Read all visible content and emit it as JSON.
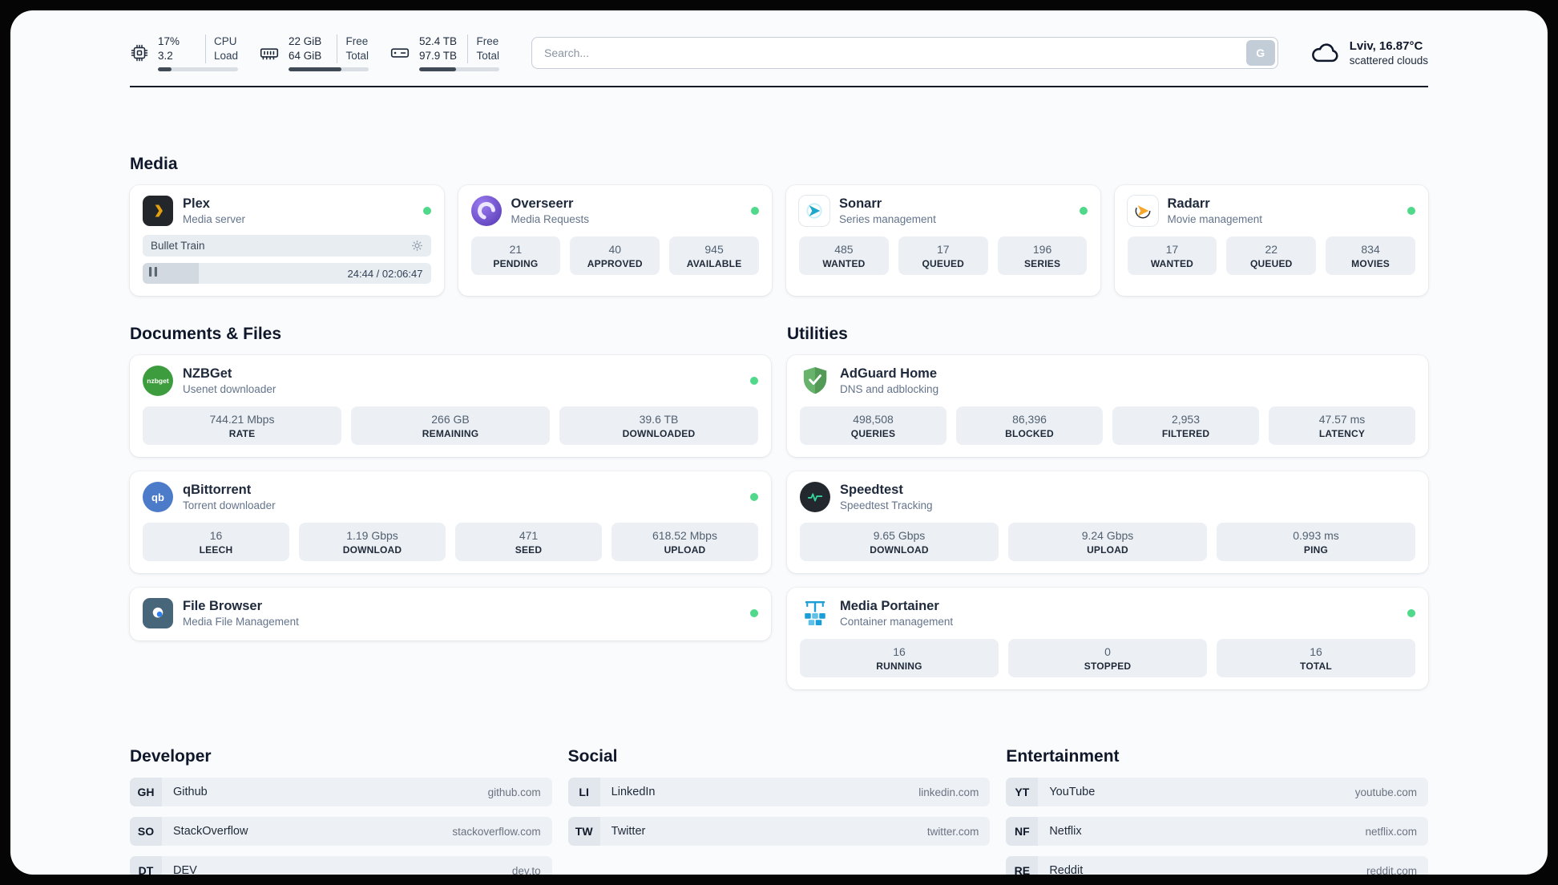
{
  "topbar": {
    "cpu": {
      "value_top": "17%",
      "value_bottom": "3.2",
      "label_top": "CPU",
      "label_bottom": "Load",
      "progress_percent": 17
    },
    "ram": {
      "value_top": "22 GiB",
      "value_bottom": "64 GiB",
      "label_top": "Free",
      "label_bottom": "Total",
      "progress_percent": 66
    },
    "disk": {
      "value_top": "52.4 TB",
      "value_bottom": "97.9 TB",
      "label_top": "Free",
      "label_bottom": "Total",
      "progress_percent": 46
    },
    "search": {
      "placeholder": "Search...",
      "engine_button": "G"
    },
    "weather": {
      "location": "Lviv, 16.87°C",
      "condition": "scattered clouds"
    }
  },
  "sections": {
    "media": {
      "title": "Media",
      "plex": {
        "name": "Plex",
        "subtitle": "Media server",
        "now_playing": "Bullet Train",
        "time": "24:44 / 02:06:47",
        "progress_percent": 19.5
      },
      "overseerr": {
        "name": "Overseerr",
        "subtitle": "Media Requests",
        "stats": [
          {
            "value": "21",
            "label": "PENDING"
          },
          {
            "value": "40",
            "label": "APPROVED"
          },
          {
            "value": "945",
            "label": "AVAILABLE"
          }
        ]
      },
      "sonarr": {
        "name": "Sonarr",
        "subtitle": "Series management",
        "stats": [
          {
            "value": "485",
            "label": "WANTED"
          },
          {
            "value": "17",
            "label": "QUEUED"
          },
          {
            "value": "196",
            "label": "SERIES"
          }
        ]
      },
      "radarr": {
        "name": "Radarr",
        "subtitle": "Movie management",
        "stats": [
          {
            "value": "17",
            "label": "WANTED"
          },
          {
            "value": "22",
            "label": "QUEUED"
          },
          {
            "value": "834",
            "label": "MOVIES"
          }
        ]
      }
    },
    "documents": {
      "title": "Documents & Files",
      "nzbget": {
        "name": "NZBGet",
        "subtitle": "Usenet downloader",
        "stats": [
          {
            "value": "744.21 Mbps",
            "label": "RATE"
          },
          {
            "value": "266 GB",
            "label": "REMAINING"
          },
          {
            "value": "39.6 TB",
            "label": "DOWNLOADED"
          }
        ]
      },
      "qbittorrent": {
        "name": "qBittorrent",
        "subtitle": "Torrent downloader",
        "stats": [
          {
            "value": "16",
            "label": "LEECH"
          },
          {
            "value": "1.19 Gbps",
            "label": "DOWNLOAD"
          },
          {
            "value": "471",
            "label": "SEED"
          },
          {
            "value": "618.52 Mbps",
            "label": "UPLOAD"
          }
        ]
      },
      "filebrowser": {
        "name": "File Browser",
        "subtitle": "Media File Management"
      }
    },
    "utilities": {
      "title": "Utilities",
      "adguard": {
        "name": "AdGuard Home",
        "subtitle": "DNS and adblocking",
        "stats": [
          {
            "value": "498,508",
            "label": "QUERIES"
          },
          {
            "value": "86,396",
            "label": "BLOCKED"
          },
          {
            "value": "2,953",
            "label": "FILTERED"
          },
          {
            "value": "47.57 ms",
            "label": "LATENCY"
          }
        ]
      },
      "speedtest": {
        "name": "Speedtest",
        "subtitle": "Speedtest Tracking",
        "stats": [
          {
            "value": "9.65 Gbps",
            "label": "DOWNLOAD"
          },
          {
            "value": "9.24 Gbps",
            "label": "UPLOAD"
          },
          {
            "value": "0.993 ms",
            "label": "PING"
          }
        ]
      },
      "portainer": {
        "name": "Media Portainer",
        "subtitle": "Container management",
        "stats": [
          {
            "value": "16",
            "label": "RUNNING"
          },
          {
            "value": "0",
            "label": "STOPPED"
          },
          {
            "value": "16",
            "label": "TOTAL"
          }
        ]
      }
    },
    "developer": {
      "title": "Developer",
      "links": [
        {
          "abbr": "GH",
          "name": "Github",
          "url": "github.com"
        },
        {
          "abbr": "SO",
          "name": "StackOverflow",
          "url": "stackoverflow.com"
        },
        {
          "abbr": "DT",
          "name": "DEV",
          "url": "dev.to"
        }
      ]
    },
    "social": {
      "title": "Social",
      "links": [
        {
          "abbr": "LI",
          "name": "LinkedIn",
          "url": "linkedin.com"
        },
        {
          "abbr": "TW",
          "name": "Twitter",
          "url": "twitter.com"
        }
      ]
    },
    "entertainment": {
      "title": "Entertainment",
      "links": [
        {
          "abbr": "YT",
          "name": "YouTube",
          "url": "youtube.com"
        },
        {
          "abbr": "NF",
          "name": "Netflix",
          "url": "netflix.com"
        },
        {
          "abbr": "RE",
          "name": "Reddit",
          "url": "reddit.com"
        }
      ]
    }
  },
  "colors": {
    "status_online": "#50d88b",
    "page_background": "#fafbfd",
    "card_background": "#ffffff",
    "stat_pill": "#ecf0f5",
    "progress_fill": "#3f4a56",
    "plex_brand": "#e5a00d",
    "adguard_brand": "#68b36b",
    "portainer_brand": "#1b9ed8"
  }
}
